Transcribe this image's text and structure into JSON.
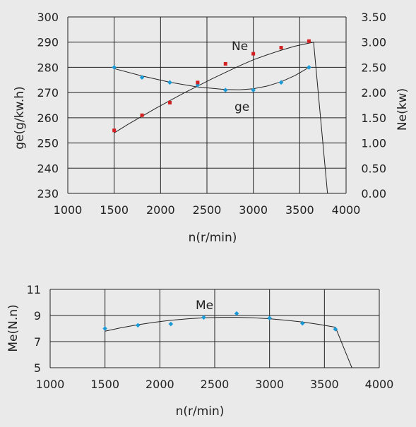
{
  "chart_data": [
    {
      "type": "scatter",
      "xlabel": "n(r/min)",
      "ylabel": "ge(g/kw.h)",
      "y2label": "Ne(kw)",
      "xlim": [
        1000,
        4000
      ],
      "ylim": [
        230,
        300
      ],
      "y2lim": [
        0.0,
        3.5
      ],
      "xticks": [
        "1000",
        "1500",
        "2000",
        "2500",
        "3000",
        "3500",
        "4000"
      ],
      "yticks": [
        "230",
        "240",
        "250",
        "260",
        "270",
        "280",
        "290",
        "300"
      ],
      "y2ticks": [
        "0.00",
        "0.50",
        "1.00",
        "1.50",
        "2.00",
        "2.50",
        "3.00",
        "3.50"
      ],
      "grid": true,
      "series": [
        {
          "name": "ge",
          "axis": "left",
          "color": "#1a9ad6",
          "marker": "diamond",
          "x": [
            1500,
            1800,
            2100,
            2400,
            2700,
            3000,
            3300,
            3600
          ],
          "values": [
            280,
            276,
            274,
            273,
            271,
            271,
            274,
            280
          ],
          "fit_x": [
            1500,
            1800,
            2100,
            2400,
            2700,
            2850,
            3000,
            3150,
            3300,
            3450,
            3600
          ],
          "fit_values": [
            279.5,
            276.6,
            274.1,
            272.2,
            271.2,
            271.1,
            271.5,
            272.6,
            274.3,
            276.8,
            280
          ]
        },
        {
          "name": "Ne",
          "axis": "right",
          "color": "#d42020",
          "marker": "square",
          "x": [
            1500,
            1800,
            2100,
            2400,
            2700,
            3000,
            3300,
            3600
          ],
          "values": [
            1.25,
            1.55,
            1.8,
            2.2,
            2.57,
            2.77,
            2.89,
            3.02
          ],
          "fit_x": [
            1500,
            1650,
            1800,
            1950,
            2100,
            2250,
            2400,
            2550,
            2700,
            2850,
            3000,
            3150,
            3300,
            3450,
            3600,
            3650,
            3800
          ],
          "fit_values": [
            1.2,
            1.37,
            1.53,
            1.69,
            1.84,
            1.99,
            2.13,
            2.27,
            2.4,
            2.53,
            2.65,
            2.75,
            2.84,
            2.92,
            2.98,
            3.0,
            0.0
          ]
        }
      ]
    },
    {
      "type": "scatter",
      "xlabel": "n(r/min)",
      "ylabel": "Me(N.n)",
      "xlim": [
        1000,
        4000
      ],
      "ylim": [
        5,
        11
      ],
      "xticks": [
        "1000",
        "1500",
        "2000",
        "2500",
        "3000",
        "3500",
        "4000"
      ],
      "yticks": [
        "5",
        "7",
        "9",
        "11"
      ],
      "grid": true,
      "series": [
        {
          "name": "Me",
          "color": "#1a9ad6",
          "marker": "diamond",
          "x": [
            1500,
            1800,
            2100,
            2400,
            2700,
            3000,
            3300,
            3600
          ],
          "values": [
            8.0,
            8.25,
            8.35,
            8.85,
            9.15,
            8.8,
            8.4,
            7.95
          ],
          "fit_x": [
            1500,
            1650,
            1800,
            1950,
            2100,
            2250,
            2400,
            2550,
            2700,
            2850,
            3000,
            3150,
            3300,
            3450,
            3600,
            3750
          ],
          "fit_values": [
            7.8,
            8.07,
            8.29,
            8.48,
            8.63,
            8.74,
            8.82,
            8.86,
            8.86,
            8.82,
            8.75,
            8.64,
            8.5,
            8.32,
            8.1,
            5.0
          ]
        }
      ]
    }
  ]
}
